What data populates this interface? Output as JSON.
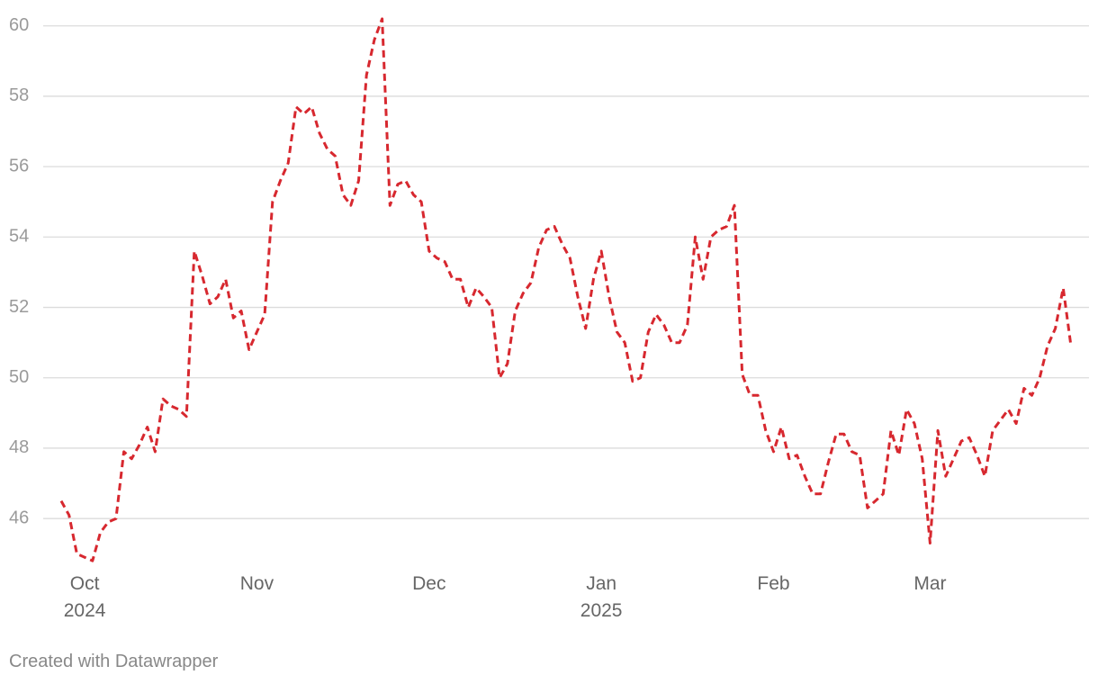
{
  "chart_data": {
    "type": "line",
    "categories": [
      null,
      null,
      null,
      "Oct\n2024",
      null,
      null,
      null,
      null,
      null,
      null,
      null,
      null,
      null,
      null,
      null,
      null,
      null,
      null,
      null,
      null,
      null,
      null,
      null,
      null,
      null,
      "Nov",
      null,
      null,
      null,
      null,
      null,
      null,
      null,
      null,
      null,
      null,
      null,
      null,
      null,
      null,
      null,
      null,
      null,
      null,
      null,
      null,
      null,
      "Dec",
      null,
      null,
      null,
      null,
      null,
      null,
      null,
      null,
      null,
      null,
      null,
      null,
      null,
      null,
      null,
      null,
      null,
      null,
      null,
      null,
      null,
      "Jan\n2025",
      null,
      null,
      null,
      null,
      null,
      null,
      null,
      null,
      null,
      null,
      null,
      null,
      null,
      null,
      null,
      null,
      null,
      null,
      null,
      null,
      null,
      "Feb",
      null,
      null,
      null,
      null,
      null,
      null,
      null,
      null,
      null,
      null,
      null,
      null,
      null,
      null,
      null,
      null,
      null,
      null,
      null,
      "Mar",
      null,
      null,
      null,
      null,
      null,
      null,
      null,
      null,
      null,
      null,
      null,
      null,
      null,
      null,
      null,
      null,
      null,
      null
    ],
    "series": [
      {
        "color": "#d7282f",
        "values": [
          46.5,
          46.1,
          45.0,
          44.9,
          44.8,
          45.6,
          45.9,
          46.0,
          47.9,
          47.7,
          48.1,
          48.6,
          47.9,
          49.4,
          49.2,
          49.1,
          48.9,
          53.6,
          52.9,
          52.1,
          52.3,
          52.8,
          51.7,
          51.9,
          50.8,
          51.3,
          51.8,
          55.0,
          55.6,
          56.1,
          57.7,
          57.5,
          57.7,
          56.95,
          56.5,
          56.3,
          55.2,
          54.9,
          55.6,
          58.6,
          59.6,
          60.2,
          54.9,
          55.5,
          55.6,
          55.2,
          55.0,
          53.6,
          53.4,
          53.3,
          52.8,
          52.8,
          52.0,
          52.55,
          52.3,
          52.0,
          50.0,
          50.4,
          51.9,
          52.4,
          52.7,
          53.7,
          54.2,
          54.3,
          53.8,
          53.4,
          52.3,
          51.4,
          52.8,
          53.6,
          52.3,
          51.3,
          51.0,
          49.9,
          50.0,
          51.3,
          51.8,
          51.5,
          51.0,
          51.0,
          51.5,
          54.0,
          52.8,
          54.0,
          54.2,
          54.3,
          54.9,
          50.1,
          49.5,
          49.5,
          48.5,
          47.9,
          48.6,
          47.7,
          47.8,
          47.2,
          46.7,
          46.7,
          47.6,
          48.4,
          48.4,
          47.9,
          47.8,
          46.3,
          46.5,
          46.7,
          48.5,
          47.8,
          49.1,
          48.7,
          47.7,
          45.3,
          48.5,
          47.2,
          47.7,
          48.2,
          48.3,
          47.8,
          47.2,
          48.5,
          48.8,
          49.1,
          48.7,
          49.7,
          49.5,
          50.0,
          50.9,
          51.4,
          52.55,
          50.9
        ]
      }
    ],
    "ylim": [
      44.7,
      60.3
    ],
    "yticks": [
      46,
      48,
      50,
      52,
      54,
      56,
      58,
      60
    ],
    "grid": true,
    "footer": "Created with Datawrapper"
  }
}
